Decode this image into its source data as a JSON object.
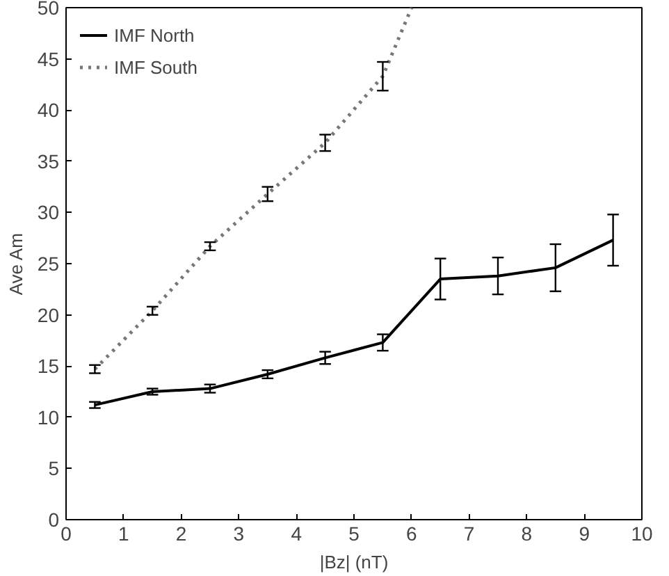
{
  "chart_data": {
    "type": "line",
    "xlabel": "|Bz| (nT)",
    "ylabel": "Ave Am",
    "xlim": [
      0,
      10
    ],
    "ylim": [
      0,
      50
    ],
    "xticks": [
      0,
      1,
      2,
      3,
      4,
      5,
      6,
      7,
      8,
      9,
      10
    ],
    "yticks": [
      0,
      5,
      10,
      15,
      20,
      25,
      30,
      35,
      40,
      45,
      50
    ],
    "grid": false,
    "legend": "top left",
    "marker": "none",
    "series": [
      {
        "name": "IMF North",
        "color": "#000000",
        "line_style": "solid",
        "x": [
          0.5,
          1.5,
          2.5,
          3.5,
          4.5,
          5.5,
          6.5,
          7.5,
          8.5,
          9.5
        ],
        "values": [
          11.2,
          12.5,
          12.8,
          14.2,
          15.8,
          17.3,
          23.5,
          23.8,
          24.6,
          27.3
        ],
        "errors": [
          0.3,
          0.3,
          0.4,
          0.4,
          0.6,
          0.8,
          2,
          1.8,
          2.3,
          2.5
        ]
      },
      {
        "name": "IMF South",
        "color": "#777777",
        "line_style": "dotted",
        "x": [
          0.5,
          1.5,
          2.5,
          3.5,
          4.5,
          5.5,
          6.0
        ],
        "values": [
          14.7,
          20.4,
          26.7,
          31.8,
          36.8,
          43.3,
          50
        ],
        "errors": [
          0.4,
          0.4,
          0.4,
          0.7,
          0.8,
          1.4,
          null
        ]
      }
    ]
  }
}
